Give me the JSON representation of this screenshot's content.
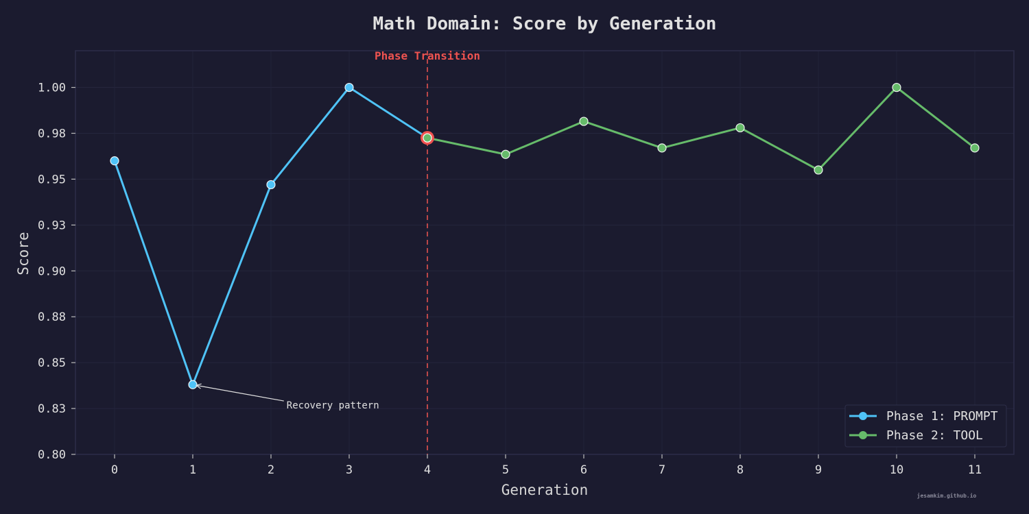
{
  "chart_data": {
    "type": "line",
    "title": "Math Domain: Score by Generation",
    "xlabel": "Generation",
    "ylabel": "Score",
    "xlim": [
      -0.5,
      11.5
    ],
    "ylim": [
      0.8,
      1.02
    ],
    "x_ticks": [
      0,
      1,
      2,
      3,
      4,
      5,
      6,
      7,
      8,
      9,
      10,
      11
    ],
    "y_ticks": [
      0.8,
      0.825,
      0.85,
      0.875,
      0.9,
      0.925,
      0.95,
      0.975,
      1.0
    ],
    "y_tick_labels": [
      "0.80",
      "0.83",
      "0.85",
      "0.88",
      "0.90",
      "0.93",
      "0.95",
      "0.98",
      "1.00"
    ],
    "grid": true,
    "legend_position": "bottom-right",
    "series": [
      {
        "name": "Phase 1: PROMPT",
        "color": "#4fc3f7",
        "x": [
          0,
          1,
          2,
          3,
          4
        ],
        "values": [
          0.96,
          0.838,
          0.947,
          1.0,
          0.9725
        ]
      },
      {
        "name": "Phase 2: TOOL",
        "color": "#66bb6a",
        "x": [
          4,
          5,
          6,
          7,
          8,
          9,
          10,
          11
        ],
        "values": [
          0.9725,
          0.9635,
          0.9815,
          0.967,
          0.978,
          0.955,
          1.0,
          0.967
        ]
      }
    ],
    "transition": {
      "x": 4,
      "y": 0.9725,
      "label": "Phase Transition",
      "color": "#ef5350"
    },
    "annotations": [
      {
        "text": "Recovery pattern",
        "target_x": 1,
        "target_y": 0.838,
        "text_x": 2.2,
        "text_y": 0.825
      }
    ],
    "watermark": "jesamkim.github.io"
  }
}
